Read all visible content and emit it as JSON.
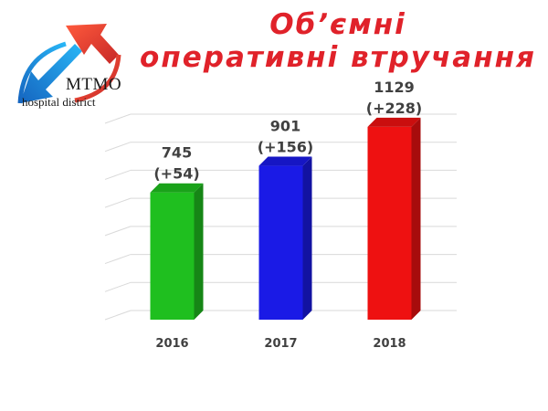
{
  "header": {
    "title_line1": "Об’ємні",
    "title_line2": "оперативні втручання"
  },
  "logo": {
    "name": "MTMO",
    "subtitle": "hospital district",
    "icon": "arrows-logo-icon"
  },
  "colors": {
    "title": "#e0222a",
    "bar_2016": "#1fbf1f",
    "bar_2017": "#1a1ae6",
    "bar_2018": "#ee1111"
  },
  "chart_data": {
    "type": "bar",
    "categories": [
      "2016",
      "2017",
      "2018"
    ],
    "values": [
      745,
      901,
      1129
    ],
    "labels": [
      "745",
      "901",
      "1129"
    ],
    "changes": [
      "(+54)",
      "(+156)",
      "(+228)"
    ],
    "colors": [
      "#1fbf1f",
      "#1a1ae6",
      "#ee1111"
    ],
    "ylim": [
      0,
      1150
    ],
    "grid": true,
    "title": "Об’ємні оперативні втручання",
    "xlabel": "",
    "ylabel": ""
  }
}
